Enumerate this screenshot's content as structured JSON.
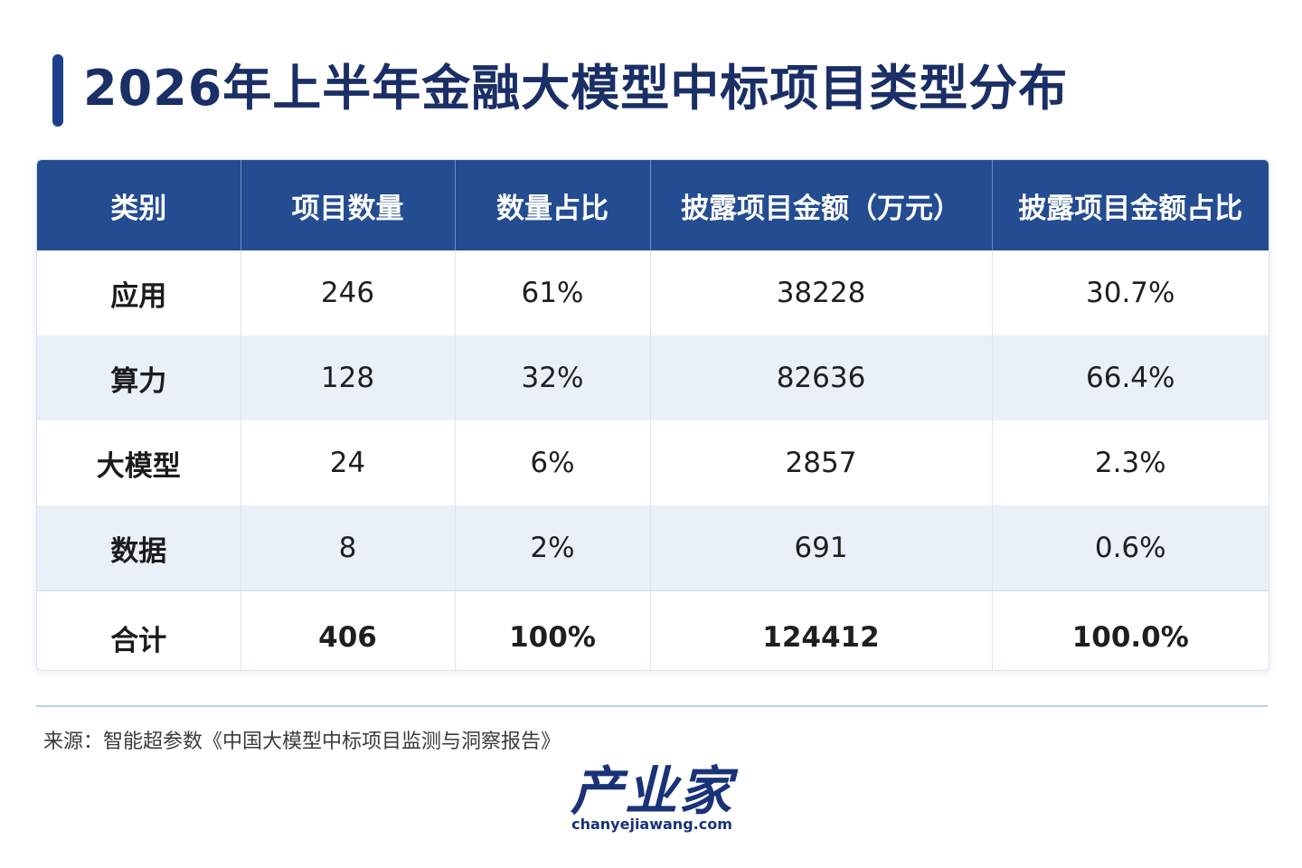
{
  "title": "2026年上半年金融大模型中标项目类型分布",
  "colors": {
    "header_bg": "#244c91",
    "title": "#1a2f66",
    "accent_bar": "#1c3f8d",
    "alt_row": "#eaf0f8"
  },
  "chart_data": {
    "type": "table",
    "title": "2026年上半年金融大模型中标项目类型分布",
    "columns": [
      "类别",
      "项目数量",
      "数量占比",
      "披露项目金额（万元）",
      "披露项目金额占比"
    ],
    "rows": [
      [
        "应用",
        "246",
        "61%",
        "38228",
        "30.7%"
      ],
      [
        "算力",
        "128",
        "32%",
        "82636",
        "66.4%"
      ],
      [
        "大模型",
        "24",
        "6%",
        "2857",
        "2.3%"
      ],
      [
        "数据",
        "8",
        "2%",
        "691",
        "0.6%"
      ]
    ],
    "total": [
      "合计",
      "406",
      "100%",
      "124412",
      "100.0%"
    ]
  },
  "source": "来源：智能超参数《中国大模型中标项目监测与洞察报告》",
  "logo": {
    "main": "产业家",
    "sub": "chanyejiawang.com"
  }
}
